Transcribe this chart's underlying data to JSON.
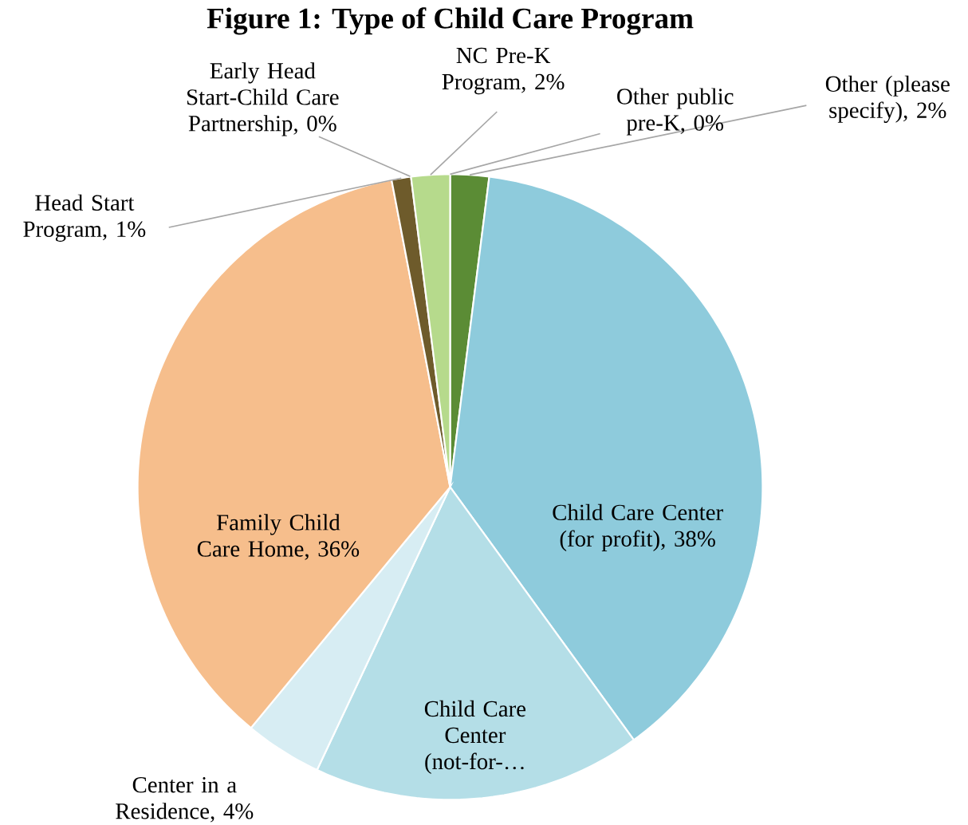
{
  "chart_data": {
    "type": "pie",
    "title": "Figure 1: Type of Child Care Program",
    "categories": [
      "Other (please specify)",
      "Child Care Center (for profit)",
      "Child Care Center (not-for-…",
      "Center in a Residence",
      "Family Child Care Home",
      "Head Start Program",
      "Early Head Start-Child Care Partnership",
      "NC Pre-K Program",
      "Other public pre-K"
    ],
    "values": [
      2,
      38,
      17,
      4,
      36,
      1,
      0,
      2,
      0
    ],
    "value_labels": [
      ", 2%",
      ", 38%",
      null,
      ", 4%",
      ", 36%",
      ", 1%",
      ", 0%",
      ", 2%",
      ", 0%"
    ],
    "colors": [
      "#5b8c35",
      "#8ecbdc",
      "#b4dee7",
      "#d7edf3",
      "#f6be8c",
      "#6e5b2b",
      "#a8c07a",
      "#b6da8c",
      "#9fd1e1"
    ]
  }
}
